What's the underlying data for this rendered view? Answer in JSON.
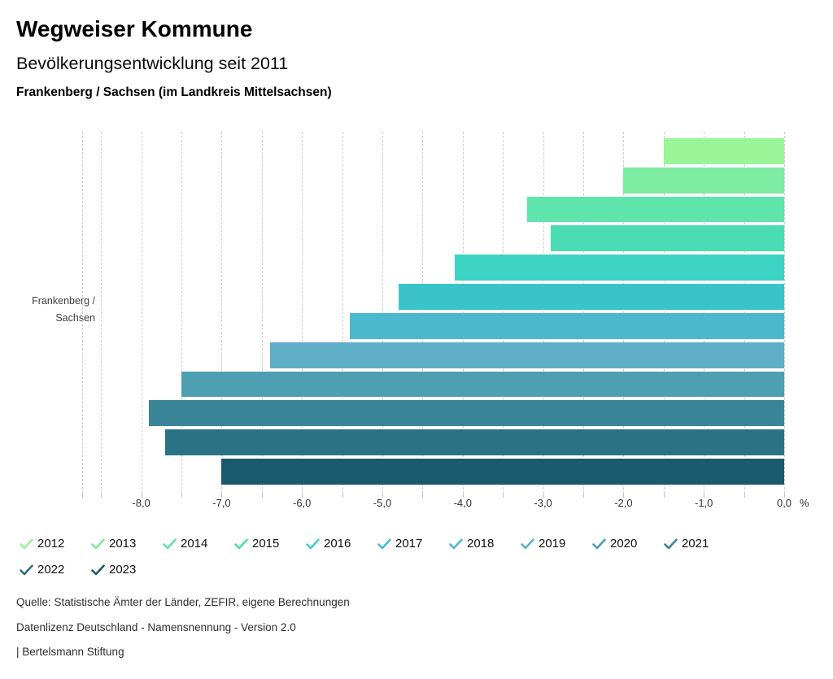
{
  "header": {
    "title": "Wegweiser Kommune",
    "subtitle": "Bevölkerungsentwicklung seit 2011",
    "location_line": "Frankenberg / Sachsen (im Landkreis Mittelsachsen)"
  },
  "chart_data": {
    "type": "bar",
    "orientation": "horizontal",
    "title": "Bevölkerungsentwicklung seit 2011",
    "category": "Frankenberg / Sachsen",
    "category_label_lines": [
      "Frankenberg /",
      "Sachsen"
    ],
    "unit_label": "%",
    "xlim": [
      -8.73,
      0
    ],
    "grid": {
      "min": -8.5,
      "max": 0,
      "step": 0.5,
      "style": "dashed-vertical"
    },
    "x_ticks": [
      {
        "value": -8,
        "label": "-8,0"
      },
      {
        "value": -7,
        "label": "-7,0"
      },
      {
        "value": -6,
        "label": "-6,0"
      },
      {
        "value": -5,
        "label": "-5,0"
      },
      {
        "value": -4,
        "label": "-4,0"
      },
      {
        "value": -3,
        "label": "-3,0"
      },
      {
        "value": -2,
        "label": "-2,0"
      },
      {
        "value": -1,
        "label": "-1,0"
      },
      {
        "value": 0,
        "label": "0,0"
      }
    ],
    "series": [
      {
        "year": "2012",
        "value": -1.5,
        "color": "#9af598"
      },
      {
        "year": "2013",
        "value": -2.0,
        "color": "#7deba1"
      },
      {
        "year": "2014",
        "value": -3.2,
        "color": "#5fe4ab"
      },
      {
        "year": "2015",
        "value": -2.9,
        "color": "#49dcb5"
      },
      {
        "year": "2016",
        "value": -4.1,
        "color": "#3cd3c2"
      },
      {
        "year": "2017",
        "value": -4.8,
        "color": "#3ac4c9"
      },
      {
        "year": "2018",
        "value": -5.4,
        "color": "#4bb9cd"
      },
      {
        "year": "2019",
        "value": -6.4,
        "color": "#5fafc8"
      },
      {
        "year": "2020",
        "value": -7.5,
        "color": "#4f9fb3"
      },
      {
        "year": "2021",
        "value": -7.9,
        "color": "#3a8597"
      },
      {
        "year": "2022",
        "value": -7.7,
        "color": "#2a7384"
      },
      {
        "year": "2023",
        "value": -7.0,
        "color": "#1a5a6d"
      }
    ]
  },
  "footer": {
    "source": "Quelle: Statistische Ämter der Länder, ZEFIR, eigene Berechnungen",
    "license": "Datenlizenz Deutschland - Namensnennung - Version 2.0",
    "attribution": "| Bertelsmann Stiftung"
  }
}
